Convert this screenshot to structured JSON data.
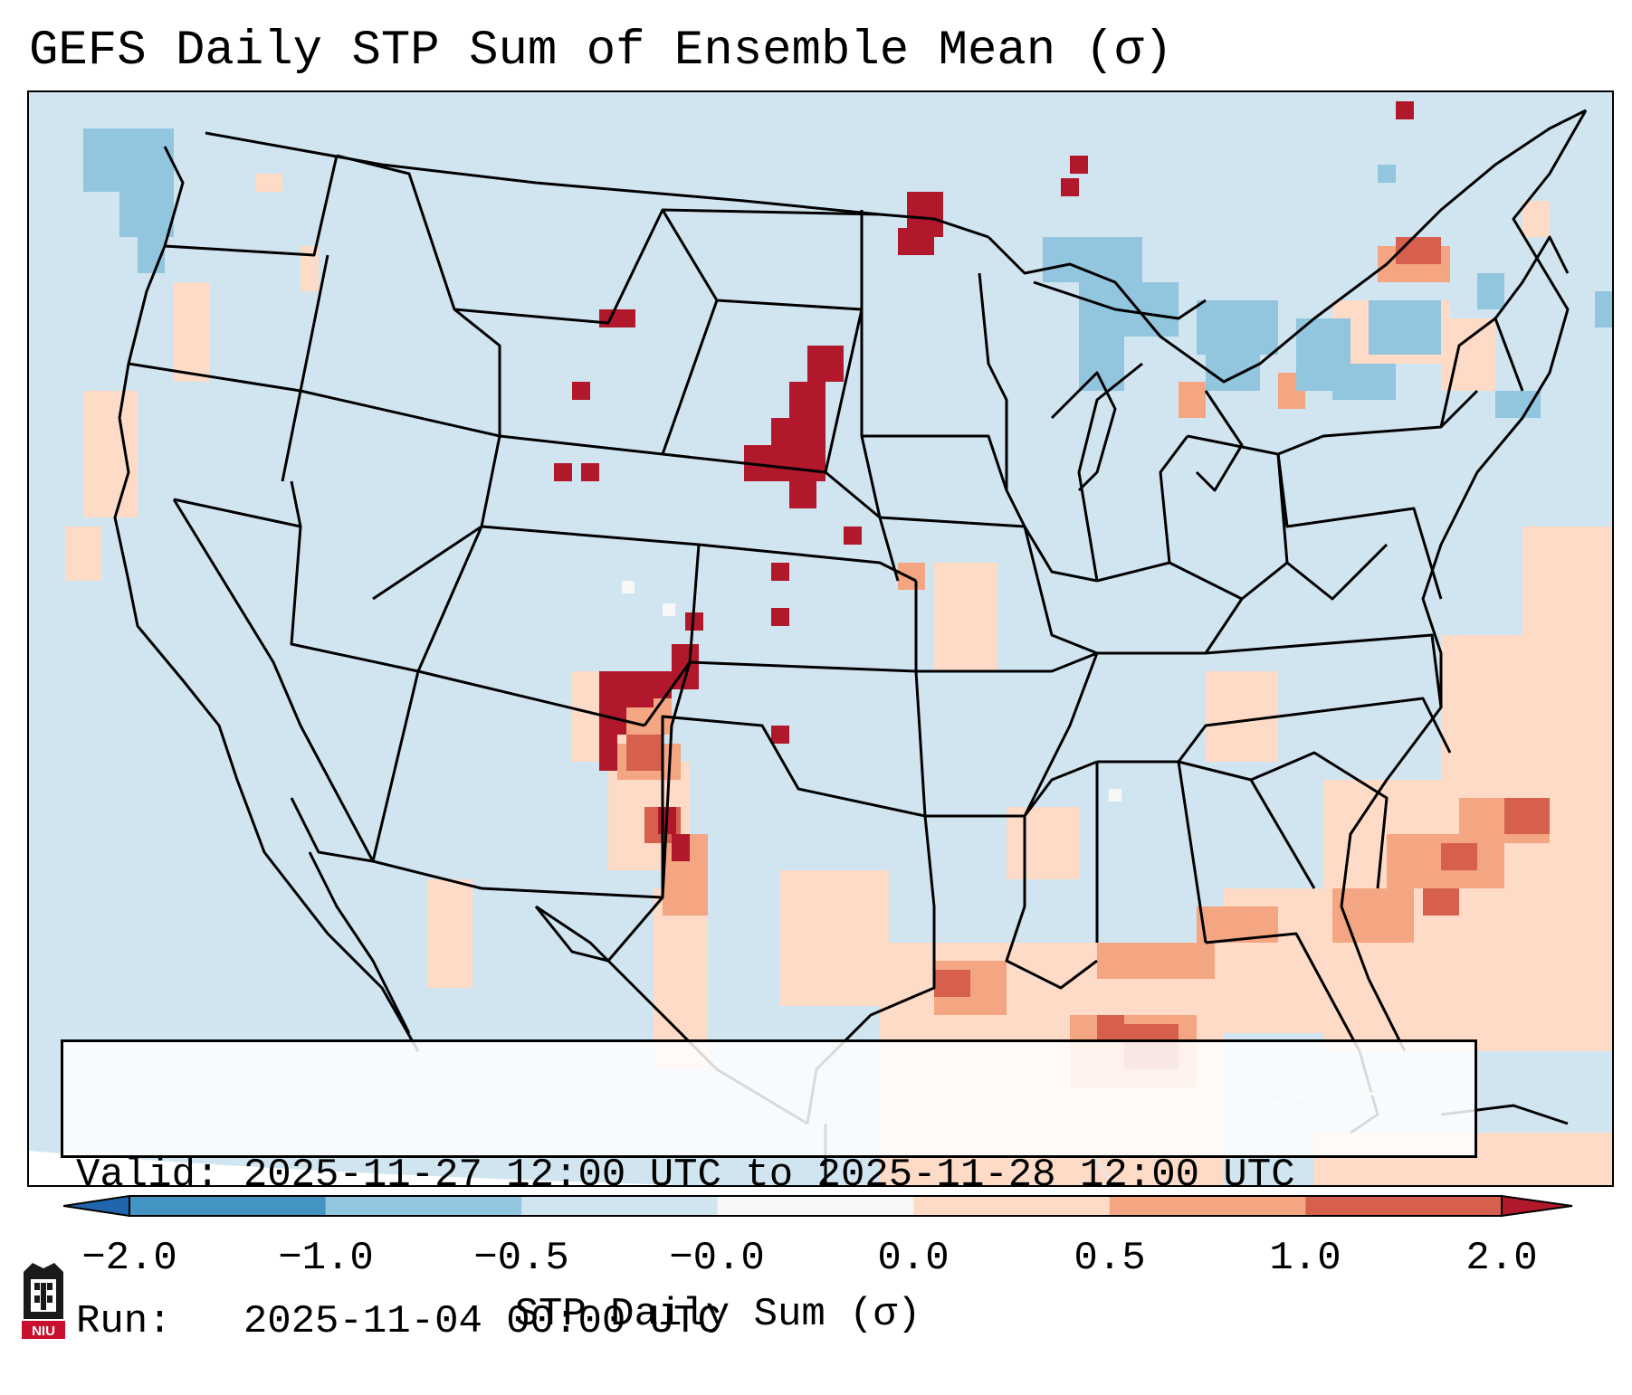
{
  "title": "GEFS Daily STP Sum of Ensemble Mean (σ)",
  "info": {
    "valid_line": "Valid: 2025-11-27 12:00 UTC to 2025-11-28 12:00 UTC",
    "run_line": "Run:   2025-11-04 00:00 UTC"
  },
  "colorbar": {
    "label": "STP Daily Sum (σ)",
    "ticks": [
      "−2.0",
      "−1.0",
      "−0.5",
      "−0.0",
      "0.0",
      "0.5",
      "1.0",
      "2.0"
    ],
    "colors": [
      "#4393c3",
      "#92c5de",
      "#d1e5f0",
      "#f7f7f7",
      "#fddbc7",
      "#f4a582",
      "#d6604d"
    ],
    "under_color": "#2166ac",
    "over_color": "#b2182b"
  },
  "map": {
    "background_color": "#d1e5f0",
    "border_color": "#000000"
  },
  "logo": {
    "text": "NIU"
  }
}
